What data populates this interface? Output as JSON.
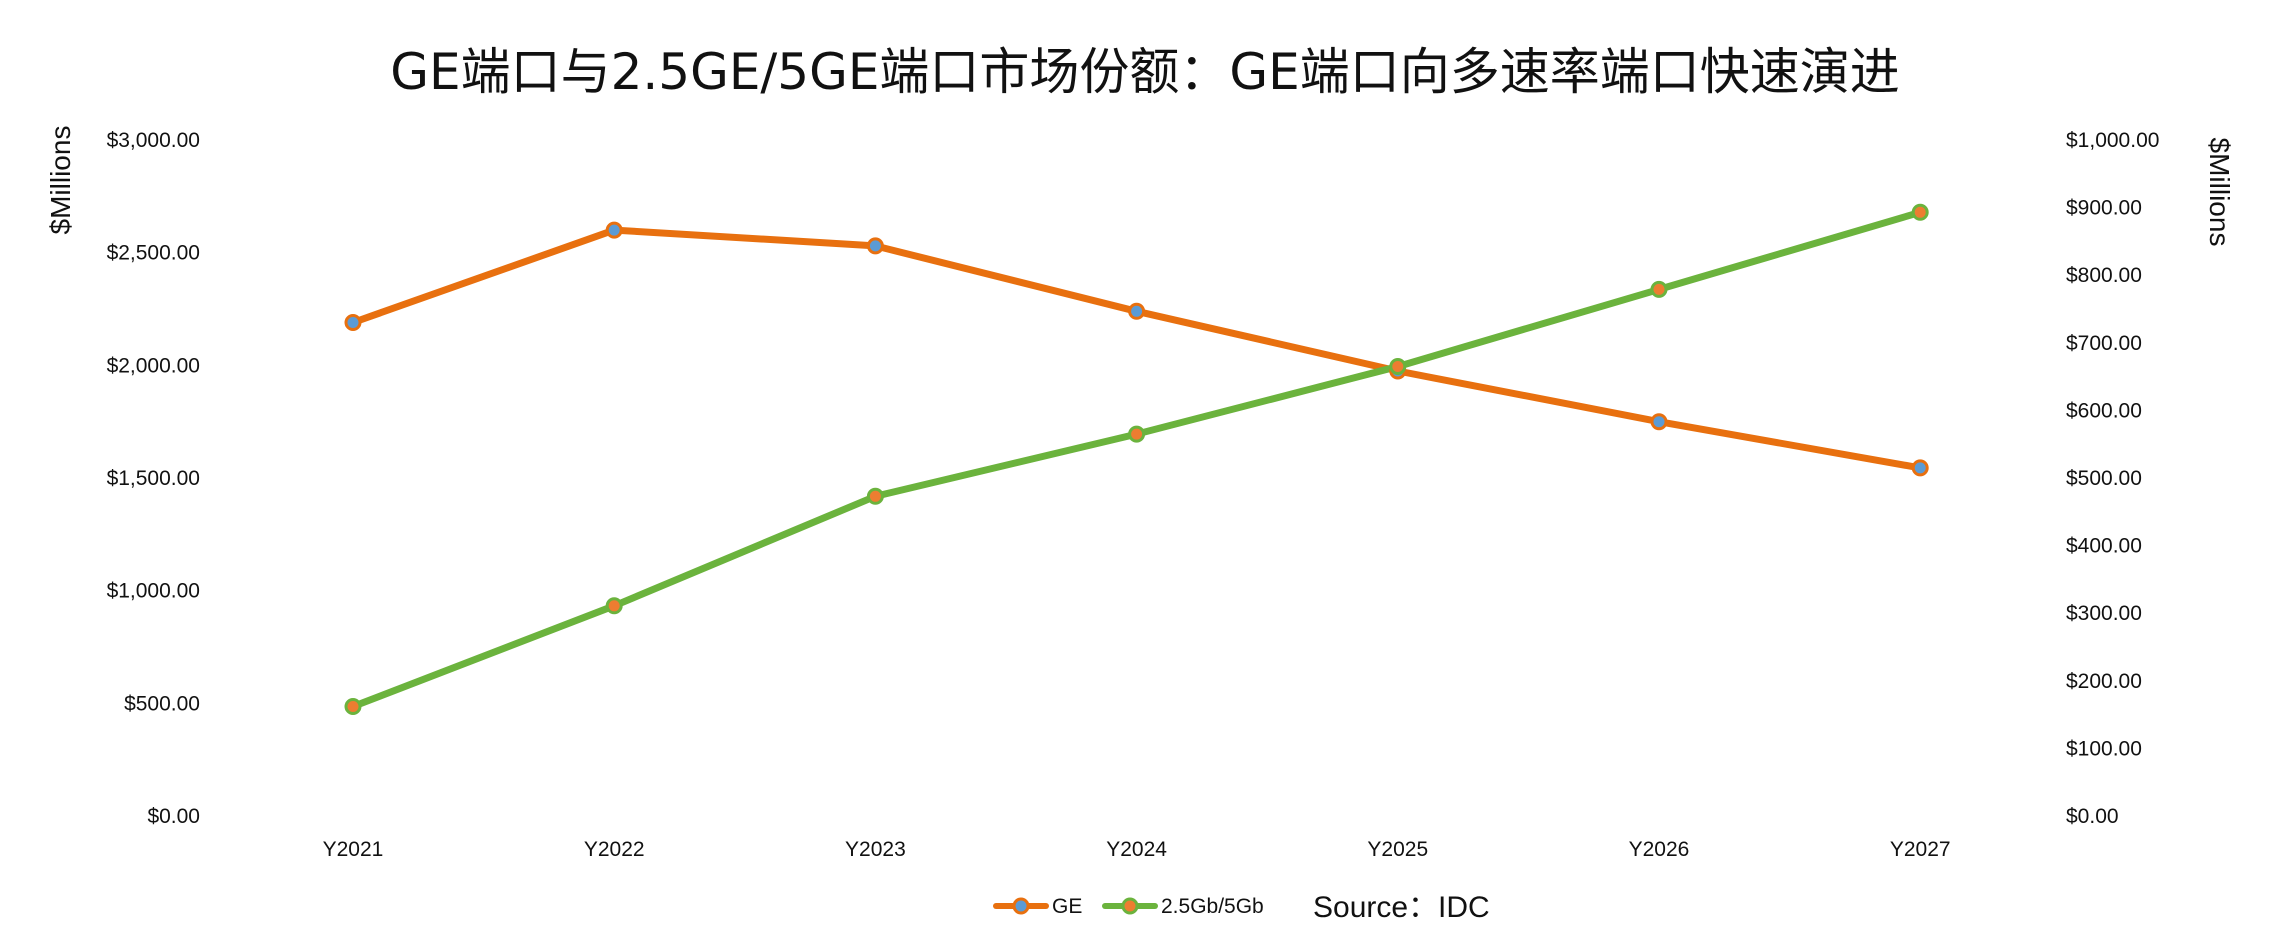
{
  "chart_data": {
    "type": "line",
    "title": "GE端口与2.5GE/5GE端口市场份额：GE端口向多速率端口快速演进",
    "categories": [
      "Y2021",
      "Y2022",
      "Y2023",
      "Y2024",
      "Y2025",
      "Y2026",
      "Y2027"
    ],
    "series": [
      {
        "name": "GE",
        "axis": "left",
        "values": [
          2190,
          2600,
          2530,
          2240,
          1975,
          1750,
          1545
        ],
        "color": "#E8700F",
        "marker_fill": "#5B9BD5"
      },
      {
        "name": "2.5Gb/5Gb",
        "axis": "right",
        "values": [
          162,
          311,
          473,
          565,
          665,
          779,
          893
        ],
        "color": "#6BB33D",
        "marker_fill": "#ED7D31"
      }
    ],
    "y_left": {
      "label": "$Millions",
      "min": 0,
      "max": 3000,
      "ticks": [
        0,
        500,
        1000,
        1500,
        2000,
        2500,
        3000
      ],
      "tick_labels": [
        "$0.00",
        "$500.00",
        "$1,000.00",
        "$1,500.00",
        "$2,000.00",
        "$2,500.00",
        "$3,000.00"
      ]
    },
    "y_right": {
      "label": "$Millions",
      "min": 0,
      "max": 1000,
      "ticks": [
        0,
        100,
        200,
        300,
        400,
        500,
        600,
        700,
        800,
        900,
        1000
      ],
      "tick_labels": [
        "$0.00",
        "$100.00",
        "$200.00",
        "$300.00",
        "$400.00",
        "$500.00",
        "$600.00",
        "$700.00",
        "$800.00",
        "$900.00",
        "$1,000.00"
      ]
    },
    "grid": false,
    "legend_position": "bottom",
    "source": "Source：IDC"
  }
}
